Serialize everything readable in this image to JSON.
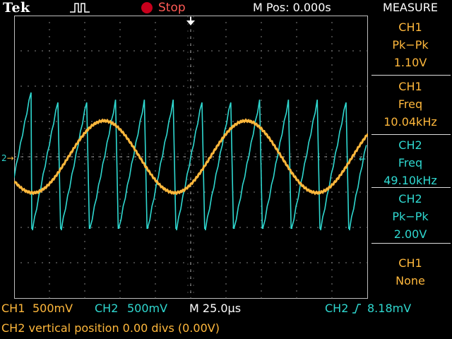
{
  "header": {
    "brand": "Tek",
    "trigger_icon": "trigger-pulse-icon",
    "run_state": "Stop",
    "m_pos": "M Pos: 0.000s",
    "measure_title": "MEASURE"
  },
  "measurements": [
    {
      "channel": "CH1",
      "type": "Pk−Pk",
      "value": "1.10V"
    },
    {
      "channel": "CH1",
      "type": "Freq",
      "value": "10.04kHz"
    },
    {
      "channel": "CH2",
      "type": "Freq",
      "value": "49.10kHz"
    },
    {
      "channel": "CH2",
      "type": "Pk−Pk",
      "value": "2.00V"
    },
    {
      "channel": "CH1",
      "type": "None",
      "value": ""
    }
  ],
  "status": {
    "ch1_label": "CH1",
    "ch1_scale": "500mV",
    "ch2_label": "CH2",
    "ch2_scale": "500mV",
    "timebase": "M 25.0µs",
    "trigger_source": "CH2",
    "trigger_slope_icon": "rising-edge-icon",
    "trigger_level": "8.18mV",
    "message": "CH2 vertical position 0.00 divs (0.00V)"
  },
  "markers": {
    "ch2_left": "2",
    "ch2_arrow": "→",
    "trigger_right": "←",
    "trigger_top": "▼"
  },
  "colors": {
    "ch1": "#ffb83c",
    "ch2": "#2fd8d0",
    "grid": "#bdbdbd",
    "stop": "#c8001c"
  }
}
